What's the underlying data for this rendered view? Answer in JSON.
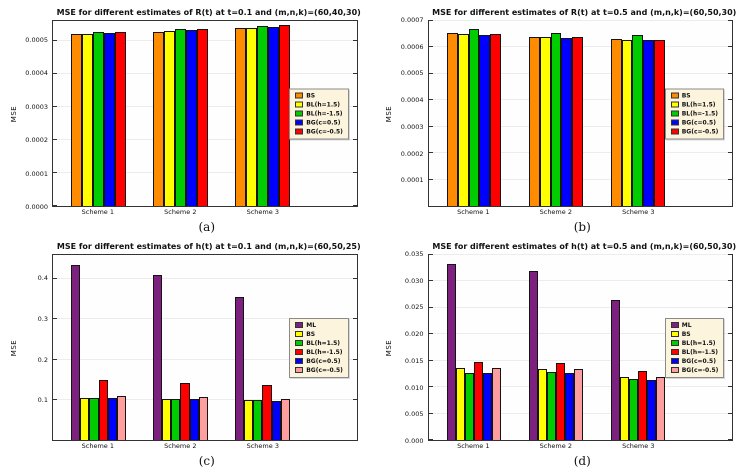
{
  "page": {
    "background": "#ffffff"
  },
  "chart_data": [
    {
      "type": "bar",
      "caption": "(a)",
      "title": "MSE for different estimates of R(t) at t=0.1 and (m,n,k)=(60,40,30)",
      "ylabel": "MSE",
      "categories": [
        "Scheme 1",
        "Scheme 2",
        "Scheme 3"
      ],
      "ylim": [
        0,
        0.00056
      ],
      "yticks": [
        0,
        0.0001,
        0.0002,
        0.0003,
        0.0004,
        0.0005
      ],
      "ytick_labels": [
        "0.0000",
        "0.0001",
        "0.0002",
        "0.0003",
        "0.0004",
        "0.0005"
      ],
      "grid": true,
      "legend_position": "right-center",
      "series": [
        {
          "name": "BS",
          "color": "#ff8c00",
          "values": [
            0.00052,
            0.000527,
            0.000538
          ]
        },
        {
          "name": "BL(h=1.5)",
          "color": "#ffff00",
          "values": [
            0.000521,
            0.00053,
            0.00054
          ]
        },
        {
          "name": "BL(h=-1.5)",
          "color": "#00cc00",
          "values": [
            0.000527,
            0.000537,
            0.000546
          ]
        },
        {
          "name": "BG(c=0.5)",
          "color": "#0000ff",
          "values": [
            0.000525,
            0.000534,
            0.000543
          ]
        },
        {
          "name": "BG(c=-0.5)",
          "color": "#ff0000",
          "values": [
            0.000526,
            0.000536,
            0.000547
          ]
        }
      ]
    },
    {
      "type": "bar",
      "caption": "(b)",
      "title": "MSE for different estimates of R(t) at t=0.5 and (m,n,k)=(60,50,30)",
      "ylabel": "MSE",
      "categories": [
        "Scheme 1",
        "Scheme 2",
        "Scheme 3"
      ],
      "ylim": [
        0,
        0.0007
      ],
      "yticks": [
        0.0001,
        0.0002,
        0.0003,
        0.0004,
        0.0005,
        0.0006,
        0.0007
      ],
      "ytick_labels": [
        "0.0001",
        "0.0002",
        "0.0003",
        "0.0004",
        "0.0005",
        "0.0006",
        "0.0007"
      ],
      "grid": true,
      "legend_position": "right-center",
      "series": [
        {
          "name": "BS",
          "color": "#ff8c00",
          "values": [
            0.000655,
            0.000641,
            0.000631
          ]
        },
        {
          "name": "BL(h=1.5)",
          "color": "#ffff00",
          "values": [
            0.00065,
            0.000638,
            0.000628
          ]
        },
        {
          "name": "BL(h=-1.5)",
          "color": "#00cc00",
          "values": [
            0.00067,
            0.000656,
            0.000646
          ]
        },
        {
          "name": "BG(c=0.5)",
          "color": "#0000ff",
          "values": [
            0.000648,
            0.000636,
            0.000627
          ]
        },
        {
          "name": "BG(c=-0.5)",
          "color": "#ff0000",
          "values": [
            0.000652,
            0.00064,
            0.00063
          ]
        }
      ]
    },
    {
      "type": "bar",
      "caption": "(c)",
      "title": "MSE for different estimates of h(t) at t=0.1 and (m,n,k)=(60,50,25)",
      "ylabel": "MSE",
      "categories": [
        "Scheme 1",
        "Scheme 2",
        "Scheme 3"
      ],
      "ylim": [
        0,
        0.46
      ],
      "yticks": [
        0.1,
        0.2,
        0.3,
        0.4
      ],
      "ytick_labels": [
        "0.1",
        "0.2",
        "0.3",
        "0.4"
      ],
      "grid": true,
      "legend_position": "right-center",
      "series": [
        {
          "name": "ML",
          "color": "#7d2181",
          "values": [
            0.435,
            0.41,
            0.355
          ]
        },
        {
          "name": "BS",
          "color": "#ffff00",
          "values": [
            0.105,
            0.102,
            0.1
          ]
        },
        {
          "name": "BL(h=1.5)",
          "color": "#00cc00",
          "values": [
            0.104,
            0.101,
            0.099
          ]
        },
        {
          "name": "BL(h=-1.5)",
          "color": "#ff0000",
          "values": [
            0.15,
            0.143,
            0.138
          ]
        },
        {
          "name": "BG(c=0.5)",
          "color": "#0000ff",
          "values": [
            0.104,
            0.101,
            0.098
          ]
        },
        {
          "name": "BG(c=-0.5)",
          "color": "#ff9e9e",
          "values": [
            0.11,
            0.106,
            0.103
          ]
        }
      ]
    },
    {
      "type": "bar",
      "caption": "(d)",
      "title": "MSE for different estimates of h(t) at t=0.5 and (m,n,k)=(60,50,30)",
      "ylabel": "MSE",
      "categories": [
        "Scheme 1",
        "Scheme 2",
        "Scheme 3"
      ],
      "ylim": [
        0,
        0.035
      ],
      "yticks": [
        0,
        0.005,
        0.01,
        0.015,
        0.02,
        0.025,
        0.03,
        0.035
      ],
      "ytick_labels": [
        "0.000",
        "0.005",
        "0.010",
        "0.015",
        "0.020",
        "0.025",
        "0.030",
        "0.035"
      ],
      "grid": true,
      "legend_position": "right-center",
      "series": [
        {
          "name": "ML",
          "color": "#7d2181",
          "values": [
            0.0333,
            0.032,
            0.0265
          ]
        },
        {
          "name": "BS",
          "color": "#ffff00",
          "values": [
            0.0136,
            0.0135,
            0.012
          ]
        },
        {
          "name": "BL(h=1.5)",
          "color": "#00cc00",
          "values": [
            0.0127,
            0.0128,
            0.0115
          ]
        },
        {
          "name": "BL(h=-1.5)",
          "color": "#ff0000",
          "values": [
            0.0147,
            0.0145,
            0.013
          ]
        },
        {
          "name": "BG(c=0.5)",
          "color": "#0000ff",
          "values": [
            0.0126,
            0.0127,
            0.0114
          ]
        },
        {
          "name": "BG(c=-0.5)",
          "color": "#ff9e9e",
          "values": [
            0.0136,
            0.0134,
            0.012
          ]
        }
      ]
    }
  ]
}
